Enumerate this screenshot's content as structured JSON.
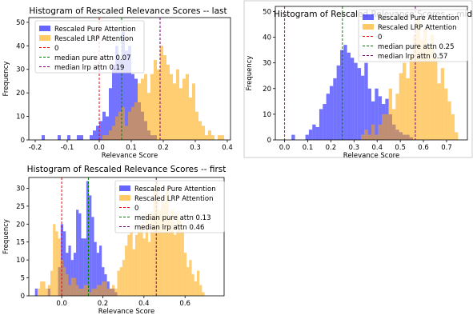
{
  "colors": {
    "pure": "#0000ff",
    "lrp": "#ffa500",
    "zero_line": "#ff0000",
    "median_pure_line": "#008000",
    "median_lrp_line": "#800080"
  },
  "chart_data": [
    {
      "id": "last",
      "type": "histogram",
      "title": "Histogram of Rescaled Relevance Scores -- last",
      "xlabel": "Relevance Score",
      "ylabel": "Frequency",
      "xlim": [
        -0.22,
        0.41
      ],
      "ylim": [
        0,
        52
      ],
      "xticks": [
        "-0.2",
        "-0.1",
        "0.0",
        "0.1",
        "0.2",
        "0.3",
        "0.4"
      ],
      "xtick_values": [
        -0.2,
        -0.1,
        0.0,
        0.1,
        0.2,
        0.3,
        0.4
      ],
      "yticks": [
        "0",
        "10",
        "20",
        "30",
        "40",
        "50"
      ],
      "ytick_values": [
        0,
        10,
        20,
        30,
        40,
        50
      ],
      "legend_position": "top-left",
      "series": [
        {
          "name": "Rescaled Pure Attention",
          "color_key": "pure",
          "bin_start": -0.18,
          "bin_width": 0.01,
          "values": [
            2,
            0,
            0,
            0,
            0,
            2,
            0,
            0,
            2,
            0,
            0,
            2,
            2,
            0,
            0,
            2,
            4,
            6,
            8,
            12,
            10,
            22,
            32,
            40,
            34,
            46,
            38,
            40,
            28,
            26,
            16,
            12,
            8,
            4,
            2,
            2,
            0,
            0,
            0,
            0,
            0,
            0,
            0,
            0,
            0,
            0,
            0,
            0,
            0,
            0,
            0,
            0,
            0,
            0,
            0,
            0,
            0
          ]
        },
        {
          "name": "Rescaled LRP Attention",
          "color_key": "lrp",
          "bin_start": -0.18,
          "bin_width": 0.01,
          "values": [
            0,
            0,
            0,
            0,
            0,
            0,
            0,
            0,
            0,
            0,
            0,
            0,
            0,
            0,
            0,
            0,
            0,
            0,
            0,
            2,
            2,
            4,
            6,
            10,
            12,
            14,
            6,
            12,
            14,
            16,
            24,
            26,
            28,
            20,
            28,
            34,
            30,
            40,
            36,
            32,
            28,
            24,
            30,
            22,
            26,
            28,
            18,
            24,
            12,
            8,
            6,
            2,
            4,
            2,
            0,
            2,
            2
          ]
        }
      ],
      "vlines": [
        {
          "label": "0",
          "x": 0.0,
          "color_key": "zero_line"
        },
        {
          "label": "median pure attn 0.07",
          "x": 0.07,
          "color_key": "median_pure_line"
        },
        {
          "label": "median lrp attn 0.19",
          "x": 0.19,
          "color_key": "median_lrp_line"
        }
      ]
    },
    {
      "id": "mid",
      "type": "histogram",
      "title": "Histogram of Rescaled Relevance Scores -- mid",
      "xlabel": "Relevance Score",
      "ylabel": "Frequency",
      "xlim": [
        -0.04,
        0.79
      ],
      "ylim": [
        0,
        52
      ],
      "xticks": [
        "0.0",
        "0.1",
        "0.2",
        "0.3",
        "0.4",
        "0.5",
        "0.6",
        "0.7"
      ],
      "xtick_values": [
        0.0,
        0.1,
        0.2,
        0.3,
        0.4,
        0.5,
        0.6,
        0.7
      ],
      "yticks": [
        "0",
        "10",
        "20",
        "30",
        "40",
        "50"
      ],
      "ytick_values": [
        0,
        10,
        20,
        30,
        40,
        50
      ],
      "legend_position": "top-right",
      "series": [
        {
          "name": "Rescaled Pure Attention",
          "color_key": "pure",
          "bin_start": 0.0,
          "bin_width": 0.015,
          "values": [
            0,
            0,
            2,
            0,
            0,
            0,
            2,
            4,
            6,
            5,
            12,
            14,
            18,
            21,
            24,
            29,
            35,
            37,
            34,
            32,
            30,
            28,
            25,
            30,
            20,
            15,
            20,
            17,
            14,
            16,
            10,
            6,
            4,
            3,
            2,
            2,
            1,
            0,
            0,
            0,
            0,
            0,
            0,
            0,
            0,
            0,
            0,
            0,
            0,
            0
          ]
        },
        {
          "name": "Rescaled LRP Attention",
          "color_key": "lrp",
          "bin_start": 0.0,
          "bin_width": 0.015,
          "values": [
            0,
            0,
            0,
            0,
            0,
            0,
            0,
            0,
            0,
            0,
            0,
            0,
            0,
            0,
            0,
            0,
            0,
            0,
            0,
            0,
            0,
            0,
            2,
            4,
            2,
            6,
            2,
            6,
            10,
            10,
            20,
            12,
            18,
            26,
            30,
            24,
            33,
            41,
            47,
            39,
            43,
            36,
            41,
            32,
            22,
            28,
            20,
            15,
            10,
            3
          ]
        }
      ],
      "vlines": [
        {
          "label": "0",
          "x": 0.0,
          "color_key": "zero_line"
        },
        {
          "label": "median pure attn 0.25",
          "x": 0.25,
          "color_key": "median_pure_line"
        },
        {
          "label": "median lrp attn 0.57",
          "x": 0.565,
          "color_key": "median_lrp_line"
        }
      ]
    },
    {
      "id": "first",
      "type": "histogram",
      "title": "Histogram of Rescaled Relevance Scores -- first",
      "xlabel": "Relevance Score",
      "ylabel": "Frequency",
      "xlim": [
        -0.16,
        0.79
      ],
      "ylim": [
        0,
        33
      ],
      "xticks": [
        "0.0",
        "0.2",
        "0.4",
        "0.6"
      ],
      "xtick_values": [
        0.0,
        0.2,
        0.4,
        0.6
      ],
      "yticks": [
        "0",
        "5",
        "10",
        "15",
        "20",
        "25",
        "30"
      ],
      "ytick_values": [
        0,
        5,
        10,
        15,
        20,
        25,
        30
      ],
      "legend_position": "top-right",
      "series": [
        {
          "name": "Rescaled Pure Attention",
          "color_key": "pure",
          "bin_start": -0.13,
          "bin_width": 0.0125,
          "values": [
            2,
            0,
            0,
            0,
            0,
            2,
            0,
            0,
            0,
            8,
            20,
            18,
            12,
            14,
            10,
            12,
            24,
            23,
            16,
            16,
            32,
            28,
            22,
            15,
            12,
            14,
            8,
            6,
            4,
            2,
            2,
            1,
            0,
            0,
            0,
            0,
            0,
            0,
            0,
            0,
            0,
            0,
            0,
            0,
            0,
            0,
            0,
            0,
            0,
            0,
            0,
            0,
            0,
            0,
            0,
            0,
            0,
            0,
            0,
            0,
            0,
            0,
            0,
            0,
            0,
            0,
            0,
            0,
            0
          ]
        },
        {
          "name": "Rescaled LRP Attention",
          "color_key": "lrp",
          "bin_start": -0.13,
          "bin_width": 0.0125,
          "values": [
            0,
            2,
            4,
            4,
            2,
            3,
            7,
            20,
            18,
            16,
            10,
            8,
            6,
            3,
            5,
            5,
            3,
            2,
            2,
            3,
            3,
            1,
            2,
            2,
            3,
            3,
            4,
            4,
            2,
            2,
            3,
            2,
            7,
            8,
            10,
            14,
            17,
            18,
            13,
            17,
            18,
            20,
            16,
            23,
            15,
            23,
            30,
            32,
            24,
            28,
            26,
            30,
            22,
            24,
            17,
            23,
            21,
            18,
            12,
            8,
            10,
            6,
            4,
            7,
            3,
            1,
            0,
            0,
            0
          ]
        }
      ],
      "vlines": [
        {
          "label": "0",
          "x": 0.0,
          "color_key": "zero_line"
        },
        {
          "label": "median pure attn 0.13",
          "x": 0.13,
          "color_key": "median_pure_line"
        },
        {
          "label": "median lrp attn 0.46",
          "x": 0.46,
          "color_key": "median_lrp_line"
        }
      ]
    }
  ]
}
